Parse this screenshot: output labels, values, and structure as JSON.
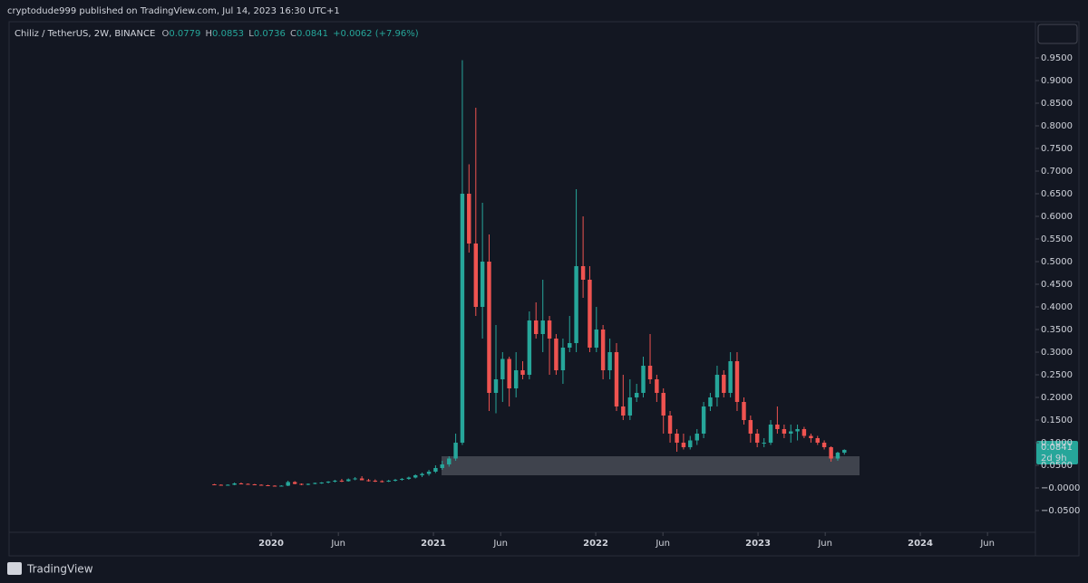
{
  "chart_data": {
    "type": "candlestick",
    "header": "cryptodude999 published on TradingView.com, Jul 14, 2023 16:30 UTC+1",
    "symbol": "Chiliz / TetherUS, 2W, BINANCE",
    "ohlc_legend": [
      {
        "key": "O",
        "value": "0.0779"
      },
      {
        "key": "H",
        "value": "0.0853"
      },
      {
        "key": "L",
        "value": "0.0736"
      },
      {
        "key": "C",
        "value": "0.0841"
      }
    ],
    "change": "+0.0062 (+7.96%)",
    "price_label": "0.0841",
    "countdown": "2d 9h",
    "footer": "TradingView",
    "up_color": "#26a69a",
    "down_color": "#ef5350",
    "x": [
      2019.65,
      2019.691,
      2019.733,
      2019.774,
      2019.815,
      2019.857,
      2019.898,
      2019.939,
      2019.98,
      2020.022,
      2020.063,
      2020.104,
      2020.146,
      2020.187,
      2020.228,
      2020.27,
      2020.311,
      2020.352,
      2020.393,
      2020.435,
      2020.476,
      2020.517,
      2020.559,
      2020.6,
      2020.641,
      2020.683,
      2020.724,
      2020.765,
      2020.806,
      2020.848,
      2020.889,
      2020.93,
      2020.972,
      2021.013,
      2021.054,
      2021.096,
      2021.137,
      2021.178,
      2021.219,
      2021.261,
      2021.302,
      2021.343,
      2021.385,
      2021.426,
      2021.467,
      2021.509,
      2021.55,
      2021.591,
      2021.632,
      2021.674,
      2021.715,
      2021.756,
      2021.798,
      2021.839,
      2021.88,
      2021.922,
      2021.963,
      2022.004,
      2022.045,
      2022.087,
      2022.128,
      2022.169,
      2022.211,
      2022.252,
      2022.293,
      2022.335,
      2022.376,
      2022.417,
      2022.458,
      2022.5,
      2022.541,
      2022.582,
      2022.624,
      2022.665,
      2022.706,
      2022.748,
      2022.789,
      2022.83,
      2022.871,
      2022.913,
      2022.954,
      2022.995,
      2023.037,
      2023.078,
      2023.119,
      2023.161,
      2023.202,
      2023.243,
      2023.284,
      2023.326,
      2023.367,
      2023.408,
      2023.45,
      2023.491,
      2023.532
    ],
    "open": [
      0.008,
      0.007,
      0.006,
      0.007,
      0.01,
      0.009,
      0.008,
      0.007,
      0.006,
      0.005,
      0.004,
      0.005,
      0.013,
      0.009,
      0.007,
      0.009,
      0.011,
      0.012,
      0.014,
      0.016,
      0.015,
      0.019,
      0.021,
      0.017,
      0.016,
      0.015,
      0.014,
      0.016,
      0.018,
      0.02,
      0.023,
      0.028,
      0.031,
      0.036,
      0.044,
      0.052,
      0.065,
      0.1,
      0.65,
      0.54,
      0.4,
      0.5,
      0.21,
      0.24,
      0.285,
      0.22,
      0.26,
      0.25,
      0.37,
      0.34,
      0.37,
      0.33,
      0.26,
      0.31,
      0.32,
      0.49,
      0.46,
      0.31,
      0.35,
      0.26,
      0.3,
      0.18,
      0.16,
      0.2,
      0.21,
      0.27,
      0.24,
      0.21,
      0.16,
      0.12,
      0.1,
      0.09,
      0.105,
      0.12,
      0.18,
      0.2,
      0.25,
      0.21,
      0.28,
      0.19,
      0.15,
      0.12,
      0.1,
      0.1,
      0.14,
      0.13,
      0.12,
      0.125,
      0.13,
      0.115,
      0.11,
      0.1,
      0.09,
      0.065,
      0.0779
    ],
    "high": [
      0.009,
      0.008,
      0.008,
      0.012,
      0.012,
      0.01,
      0.009,
      0.008,
      0.007,
      0.006,
      0.006,
      0.016,
      0.015,
      0.01,
      0.01,
      0.012,
      0.013,
      0.015,
      0.018,
      0.02,
      0.021,
      0.024,
      0.026,
      0.02,
      0.019,
      0.017,
      0.018,
      0.02,
      0.022,
      0.025,
      0.03,
      0.034,
      0.04,
      0.05,
      0.06,
      0.07,
      0.12,
      0.945,
      0.715,
      0.84,
      0.63,
      0.56,
      0.36,
      0.3,
      0.29,
      0.3,
      0.28,
      0.39,
      0.41,
      0.46,
      0.38,
      0.34,
      0.33,
      0.38,
      0.66,
      0.6,
      0.49,
      0.4,
      0.36,
      0.33,
      0.32,
      0.25,
      0.24,
      0.23,
      0.29,
      0.34,
      0.25,
      0.22,
      0.17,
      0.13,
      0.12,
      0.115,
      0.13,
      0.19,
      0.21,
      0.27,
      0.26,
      0.3,
      0.3,
      0.2,
      0.16,
      0.13,
      0.11,
      0.15,
      0.18,
      0.14,
      0.14,
      0.14,
      0.135,
      0.12,
      0.115,
      0.105,
      0.092,
      0.08,
      0.0853
    ],
    "low": [
      0.006,
      0.005,
      0.005,
      0.006,
      0.008,
      0.007,
      0.006,
      0.005,
      0.004,
      0.003,
      0.003,
      0.004,
      0.008,
      0.006,
      0.006,
      0.008,
      0.009,
      0.01,
      0.012,
      0.013,
      0.014,
      0.017,
      0.018,
      0.014,
      0.013,
      0.012,
      0.013,
      0.014,
      0.016,
      0.018,
      0.021,
      0.024,
      0.027,
      0.033,
      0.04,
      0.047,
      0.06,
      0.095,
      0.52,
      0.38,
      0.33,
      0.17,
      0.165,
      0.19,
      0.18,
      0.2,
      0.24,
      0.24,
      0.33,
      0.3,
      0.25,
      0.25,
      0.23,
      0.3,
      0.3,
      0.42,
      0.3,
      0.3,
      0.24,
      0.24,
      0.17,
      0.15,
      0.15,
      0.19,
      0.2,
      0.23,
      0.19,
      0.12,
      0.1,
      0.08,
      0.085,
      0.085,
      0.095,
      0.11,
      0.17,
      0.18,
      0.2,
      0.2,
      0.17,
      0.14,
      0.1,
      0.09,
      0.09,
      0.095,
      0.12,
      0.11,
      0.1,
      0.105,
      0.11,
      0.1,
      0.095,
      0.085,
      0.058,
      0.06,
      0.0736
    ],
    "close": [
      0.007,
      0.006,
      0.007,
      0.01,
      0.009,
      0.008,
      0.007,
      0.006,
      0.005,
      0.004,
      0.005,
      0.013,
      0.009,
      0.007,
      0.009,
      0.011,
      0.012,
      0.014,
      0.016,
      0.015,
      0.019,
      0.021,
      0.017,
      0.016,
      0.015,
      0.014,
      0.016,
      0.018,
      0.02,
      0.023,
      0.028,
      0.031,
      0.036,
      0.044,
      0.052,
      0.065,
      0.1,
      0.65,
      0.54,
      0.4,
      0.5,
      0.21,
      0.24,
      0.285,
      0.22,
      0.26,
      0.25,
      0.37,
      0.34,
      0.37,
      0.33,
      0.26,
      0.31,
      0.32,
      0.49,
      0.46,
      0.31,
      0.35,
      0.26,
      0.3,
      0.18,
      0.16,
      0.2,
      0.21,
      0.27,
      0.24,
      0.21,
      0.16,
      0.12,
      0.1,
      0.09,
      0.105,
      0.12,
      0.18,
      0.2,
      0.25,
      0.21,
      0.28,
      0.19,
      0.15,
      0.12,
      0.1,
      0.1,
      0.14,
      0.13,
      0.12,
      0.125,
      0.13,
      0.115,
      0.11,
      0.1,
      0.09,
      0.065,
      0.0779,
      0.0841
    ],
    "xlim": [
      2018.385,
      2024.698
    ],
    "ylim": [
      -0.098,
      1.03
    ],
    "xticks": [
      2020,
      {
        "value": 2020.414,
        "label": "Jun"
      },
      2021,
      {
        "value": 2021.414,
        "label": "Jun"
      },
      2022,
      {
        "value": 2022.414,
        "label": "Jun"
      },
      2023,
      {
        "value": 2023.414,
        "label": "Jun"
      },
      2024,
      {
        "value": 2024.414,
        "label": "Jun"
      }
    ],
    "yticks": [
      {
        "value": -0.05,
        "label": "−0.0500"
      },
      {
        "value": 0,
        "label": "−0.0000"
      },
      {
        "value": 0.05,
        "label": "0.0500"
      },
      {
        "value": 0.1,
        "label": "0.1000"
      },
      {
        "value": 0.15,
        "label": "0.1500"
      },
      {
        "value": 0.2,
        "label": "0.2000"
      },
      {
        "value": 0.25,
        "label": "0.2500"
      },
      {
        "value": 0.3,
        "label": "0.3000"
      },
      {
        "value": 0.35,
        "label": "0.3500"
      },
      {
        "value": 0.4,
        "label": "0.4000"
      },
      {
        "value": 0.45,
        "label": "0.4500"
      },
      {
        "value": 0.5,
        "label": "0.5000"
      },
      {
        "value": 0.55,
        "label": "0.5500"
      },
      {
        "value": 0.6,
        "label": "0.6000"
      },
      {
        "value": 0.65,
        "label": "0.6500"
      },
      {
        "value": 0.7,
        "label": "0.7000"
      },
      {
        "value": 0.75,
        "label": "0.7500"
      },
      {
        "value": 0.8,
        "label": "0.8000"
      },
      {
        "value": 0.85,
        "label": "0.8500"
      },
      {
        "value": 0.9,
        "label": "0.9000"
      },
      {
        "value": 0.95,
        "label": "0.9500"
      }
    ],
    "grid": false
  }
}
